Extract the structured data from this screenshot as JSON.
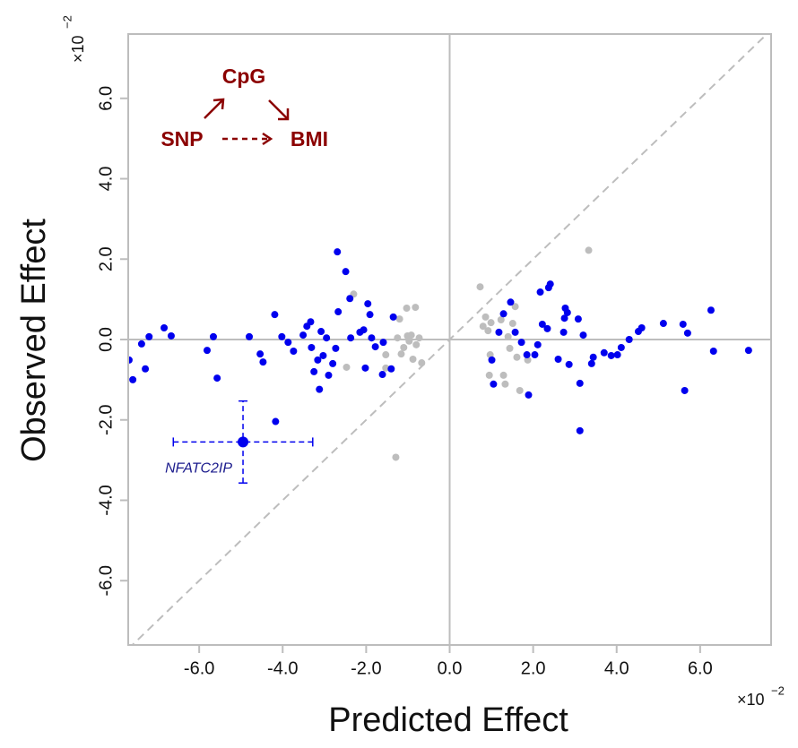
{
  "chart_data": {
    "type": "scatter",
    "xlabel": "Predicted Effect",
    "ylabel": "Observed Effect",
    "x_multiplier": {
      "base": "×10",
      "exponent": "−2"
    },
    "y_multiplier": {
      "base": "×10",
      "exponent": "−2"
    },
    "xlim": [
      -7.7,
      7.7
    ],
    "ylim": [
      -7.6,
      7.6
    ],
    "xticks": [
      {
        "value": -6,
        "label": "-6.0"
      },
      {
        "value": -4,
        "label": "-4.0"
      },
      {
        "value": -2,
        "label": "-2.0"
      },
      {
        "value": 0,
        "label": "0.0"
      },
      {
        "value": 2,
        "label": "2.0"
      },
      {
        "value": 4,
        "label": "4.0"
      },
      {
        "value": 6,
        "label": "6.0"
      }
    ],
    "yticks": [
      {
        "value": -6,
        "label": "-6.0"
      },
      {
        "value": -4,
        "label": "-4.0"
      },
      {
        "value": -2,
        "label": "-2.0"
      },
      {
        "value": 0,
        "label": "0.0"
      },
      {
        "value": 2,
        "label": "2.0"
      },
      {
        "value": 4,
        "label": "4.0"
      },
      {
        "value": 6,
        "label": "6.0"
      }
    ],
    "reference_color": "#bdbdbd",
    "series": [
      {
        "color": "#bdbdbd",
        "x": [
          -2.47,
          -2.3,
          -1.53,
          -1.25,
          -1.2,
          -1.16,
          -1.1,
          -1.03,
          -1.01,
          -0.97,
          -0.92,
          -0.88,
          -0.82,
          -0.8,
          -0.73,
          -0.67,
          -1.53,
          -1.29,
          0.73,
          0.8,
          0.86,
          0.92,
          0.97,
          0.99,
          0.95,
          1.23,
          1.29,
          1.33,
          1.4,
          1.44,
          1.51,
          1.57,
          1.61,
          1.68,
          1.87,
          3.33
        ],
        "values": [
          -0.69,
          1.13,
          -0.38,
          0.04,
          0.51,
          -0.36,
          -0.2,
          0.78,
          0.09,
          -0.04,
          0.11,
          -0.49,
          0.8,
          -0.13,
          0.04,
          -0.58,
          -0.71,
          -2.93,
          1.31,
          0.33,
          0.56,
          0.22,
          -0.38,
          0.42,
          -0.89,
          0.49,
          -0.89,
          -1.11,
          0.07,
          -0.22,
          0.4,
          0.82,
          -0.44,
          -1.27,
          -0.51,
          2.22
        ]
      },
      {
        "color": "#0000ee",
        "x": [
          -7.68,
          -7.59,
          -7.38,
          -7.29,
          -7.2,
          -6.84,
          -6.67,
          -5.81,
          -5.66,
          -5.57,
          -4.8,
          -4.54,
          -4.47,
          -4.19,
          -4.17,
          -4.02,
          -3.87,
          -3.74,
          -3.51,
          -3.42,
          -3.33,
          -3.31,
          -3.25,
          -3.16,
          -3.12,
          -3.08,
          -3.03,
          -2.95,
          -2.9,
          -2.8,
          -2.73,
          -2.69,
          -2.67,
          -2.49,
          -2.39,
          -2.37,
          -2.15,
          -2.06,
          -2.02,
          -1.96,
          -1.91,
          -1.87,
          -1.78,
          -1.61,
          -1.59,
          -1.4,
          -1.35,
          1.01,
          1.05,
          1.18,
          1.29,
          1.46,
          1.57,
          1.72,
          1.85,
          1.89,
          2.04,
          2.11,
          2.17,
          2.22,
          2.34,
          2.37,
          2.41,
          2.6,
          2.73,
          2.75,
          2.77,
          2.82,
          2.86,
          3.08,
          3.12,
          3.12,
          3.2,
          3.4,
          3.44,
          3.7,
          3.87,
          4.02,
          4.11,
          4.3,
          4.52,
          4.6,
          5.12,
          5.59,
          5.63,
          5.7,
          6.26,
          6.32,
          7.16
        ],
        "values": [
          -0.51,
          -1.0,
          -0.11,
          -0.73,
          0.07,
          0.29,
          0.09,
          -0.27,
          0.07,
          -0.96,
          0.07,
          -0.36,
          -0.56,
          0.62,
          -2.04,
          0.07,
          -0.07,
          -0.29,
          0.11,
          0.33,
          0.44,
          -0.2,
          -0.8,
          -0.51,
          -1.24,
          0.2,
          -0.4,
          0.04,
          -0.89,
          -0.6,
          -0.22,
          2.18,
          0.69,
          1.69,
          1.02,
          0.04,
          0.18,
          0.24,
          -0.71,
          0.89,
          0.62,
          0.04,
          -0.18,
          -0.87,
          -0.07,
          -0.73,
          0.56,
          -0.51,
          -1.11,
          0.18,
          0.64,
          0.93,
          0.18,
          -0.07,
          -0.38,
          -1.38,
          -0.38,
          -0.13,
          1.18,
          0.38,
          0.27,
          1.29,
          1.38,
          -0.49,
          0.18,
          0.53,
          0.78,
          0.67,
          -0.62,
          0.51,
          -2.27,
          -1.09,
          0.11,
          -0.6,
          -0.44,
          -0.33,
          -0.4,
          -0.38,
          -0.2,
          0.0,
          0.2,
          0.29,
          0.4,
          0.38,
          -1.27,
          0.16,
          0.73,
          -0.29,
          -0.27
        ]
      }
    ],
    "highlight": {
      "label": "NFATC2IP",
      "x": -4.95,
      "y": -2.55,
      "xerr": 1.67,
      "yerr": 1.02,
      "color": "#0000ee",
      "label_color": "#1a1a8c"
    },
    "diagram": {
      "color": "#8b0000",
      "top": "CpG",
      "left": "SNP",
      "right": "BMI"
    }
  }
}
